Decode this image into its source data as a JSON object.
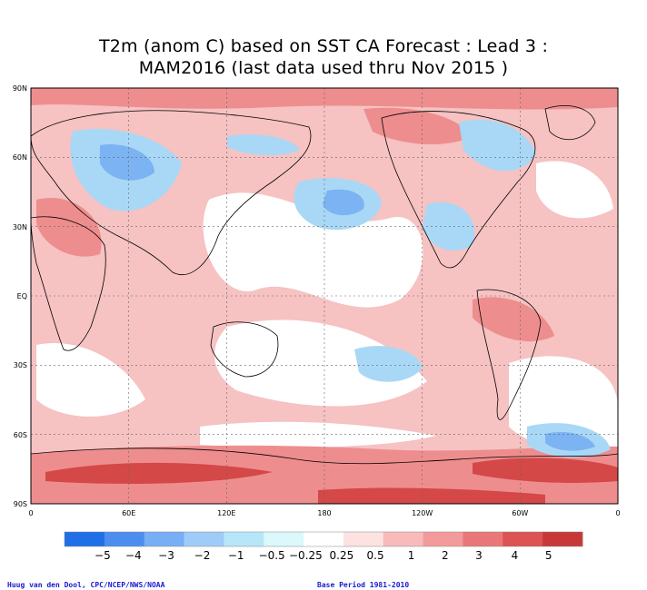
{
  "title_line1": "T2m (anom C) based on SST CA Forecast : Lead 3 :",
  "title_line2": "MAM2016 (last data used thru Nov 2015 )",
  "lat_labels": [
    "90N",
    "60N",
    "30N",
    "EQ",
    "30S",
    "60S",
    "90S"
  ],
  "lon_labels": [
    "0",
    "60E",
    "120E",
    "180",
    "120W",
    "60W",
    "0"
  ],
  "legend": {
    "labels": [
      "−5",
      "−4",
      "−3",
      "−2",
      "−1",
      "−0.5",
      "−0.25",
      "0.25",
      "0.5",
      "1",
      "2",
      "3",
      "4",
      "5"
    ],
    "colors": [
      "#1f6fe6",
      "#4b8ef0",
      "#78aef4",
      "#9fcbf8",
      "#b6e6f8",
      "#dbf8fb",
      "#ffffff",
      "#fde2e2",
      "#f8baba",
      "#f39a9a",
      "#e97777",
      "#dd5252",
      "#c83838"
    ]
  },
  "credit_left": "Huug van den Dool, CPC/NCEP/NWS/NOAA",
  "credit_right": "Base Period 1981-2010"
}
